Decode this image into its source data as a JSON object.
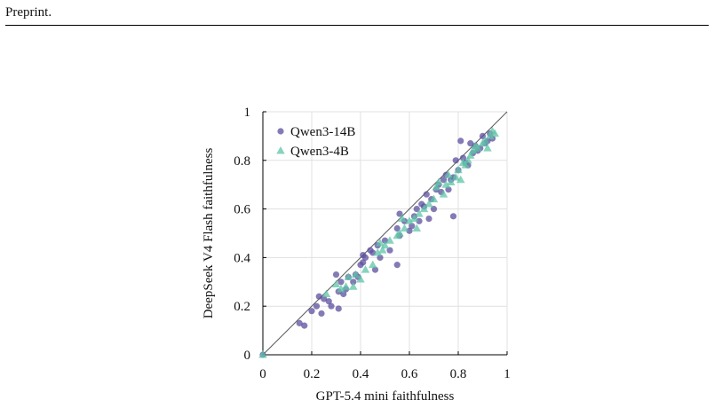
{
  "header": {
    "running_head": "Preprint."
  },
  "chart_data": {
    "type": "scatter",
    "title": "",
    "xlabel": "GPT-5.4 mini faithfulness",
    "ylabel": "DeepSeek V4 Flash faithfulness",
    "xlim": [
      0,
      1
    ],
    "ylim": [
      0,
      1
    ],
    "xticks": [
      "0",
      "0.2",
      "0.4",
      "0.6",
      "0.8",
      "1"
    ],
    "yticks": [
      "0",
      "0.2",
      "0.4",
      "0.6",
      "0.8",
      "1"
    ],
    "grid": true,
    "reference_line": "y = x",
    "legend_position": "top-left",
    "series": [
      {
        "name": "Qwen3-14B",
        "marker": "circle",
        "color": "#5b4f9e",
        "points": [
          [
            0,
            0
          ],
          [
            0.15,
            0.13
          ],
          [
            0.17,
            0.12
          ],
          [
            0.2,
            0.18
          ],
          [
            0.22,
            0.2
          ],
          [
            0.23,
            0.24
          ],
          [
            0.24,
            0.17
          ],
          [
            0.25,
            0.23
          ],
          [
            0.27,
            0.22
          ],
          [
            0.28,
            0.2
          ],
          [
            0.3,
            0.33
          ],
          [
            0.31,
            0.19
          ],
          [
            0.31,
            0.26
          ],
          [
            0.32,
            0.3
          ],
          [
            0.33,
            0.25
          ],
          [
            0.34,
            0.27
          ],
          [
            0.35,
            0.32
          ],
          [
            0.37,
            0.3
          ],
          [
            0.38,
            0.33
          ],
          [
            0.39,
            0.32
          ],
          [
            0.4,
            0.37
          ],
          [
            0.41,
            0.38
          ],
          [
            0.41,
            0.41
          ],
          [
            0.42,
            0.4
          ],
          [
            0.44,
            0.43
          ],
          [
            0.45,
            0.42
          ],
          [
            0.46,
            0.35
          ],
          [
            0.47,
            0.45
          ],
          [
            0.48,
            0.4
          ],
          [
            0.5,
            0.47
          ],
          [
            0.52,
            0.43
          ],
          [
            0.55,
            0.37
          ],
          [
            0.55,
            0.52
          ],
          [
            0.56,
            0.49
          ],
          [
            0.56,
            0.58
          ],
          [
            0.58,
            0.55
          ],
          [
            0.6,
            0.51
          ],
          [
            0.61,
            0.53
          ],
          [
            0.62,
            0.57
          ],
          [
            0.63,
            0.6
          ],
          [
            0.64,
            0.55
          ],
          [
            0.65,
            0.62
          ],
          [
            0.66,
            0.61
          ],
          [
            0.67,
            0.66
          ],
          [
            0.68,
            0.56
          ],
          [
            0.69,
            0.64
          ],
          [
            0.7,
            0.6
          ],
          [
            0.71,
            0.68
          ],
          [
            0.72,
            0.7
          ],
          [
            0.73,
            0.67
          ],
          [
            0.74,
            0.72
          ],
          [
            0.75,
            0.74
          ],
          [
            0.76,
            0.68
          ],
          [
            0.77,
            0.72
          ],
          [
            0.78,
            0.73
          ],
          [
            0.78,
            0.57
          ],
          [
            0.79,
            0.8
          ],
          [
            0.8,
            0.76
          ],
          [
            0.81,
            0.88
          ],
          [
            0.82,
            0.81
          ],
          [
            0.83,
            0.79
          ],
          [
            0.84,
            0.78
          ],
          [
            0.85,
            0.87
          ],
          [
            0.86,
            0.83
          ],
          [
            0.87,
            0.86
          ],
          [
            0.88,
            0.84
          ],
          [
            0.89,
            0.85
          ],
          [
            0.9,
            0.9
          ],
          [
            0.91,
            0.87
          ],
          [
            0.92,
            0.88
          ],
          [
            0.93,
            0.91
          ],
          [
            0.94,
            0.89
          ]
        ]
      },
      {
        "name": "Qwen3-4B",
        "marker": "triangle",
        "color": "#5fc4a8",
        "points": [
          [
            0,
            0
          ],
          [
            0.26,
            0.25
          ],
          [
            0.3,
            0.29
          ],
          [
            0.32,
            0.27
          ],
          [
            0.34,
            0.28
          ],
          [
            0.35,
            0.32
          ],
          [
            0.37,
            0.28
          ],
          [
            0.38,
            0.33
          ],
          [
            0.4,
            0.31
          ],
          [
            0.42,
            0.35
          ],
          [
            0.45,
            0.37
          ],
          [
            0.47,
            0.42
          ],
          [
            0.48,
            0.46
          ],
          [
            0.49,
            0.43
          ],
          [
            0.5,
            0.45
          ],
          [
            0.52,
            0.47
          ],
          [
            0.55,
            0.49
          ],
          [
            0.56,
            0.5
          ],
          [
            0.57,
            0.56
          ],
          [
            0.58,
            0.52
          ],
          [
            0.6,
            0.55
          ],
          [
            0.62,
            0.56
          ],
          [
            0.63,
            0.52
          ],
          [
            0.64,
            0.58
          ],
          [
            0.66,
            0.6
          ],
          [
            0.68,
            0.62
          ],
          [
            0.7,
            0.64
          ],
          [
            0.71,
            0.69
          ],
          [
            0.72,
            0.71
          ],
          [
            0.74,
            0.66
          ],
          [
            0.75,
            0.7
          ],
          [
            0.76,
            0.74
          ],
          [
            0.77,
            0.71
          ],
          [
            0.79,
            0.73
          ],
          [
            0.8,
            0.76
          ],
          [
            0.81,
            0.72
          ],
          [
            0.82,
            0.79
          ],
          [
            0.83,
            0.78
          ],
          [
            0.84,
            0.8
          ],
          [
            0.85,
            0.82
          ],
          [
            0.86,
            0.84
          ],
          [
            0.87,
            0.86
          ],
          [
            0.88,
            0.85
          ],
          [
            0.9,
            0.87
          ],
          [
            0.91,
            0.88
          ],
          [
            0.92,
            0.85
          ],
          [
            0.93,
            0.9
          ],
          [
            0.94,
            0.92
          ],
          [
            0.95,
            0.91
          ]
        ]
      }
    ]
  }
}
